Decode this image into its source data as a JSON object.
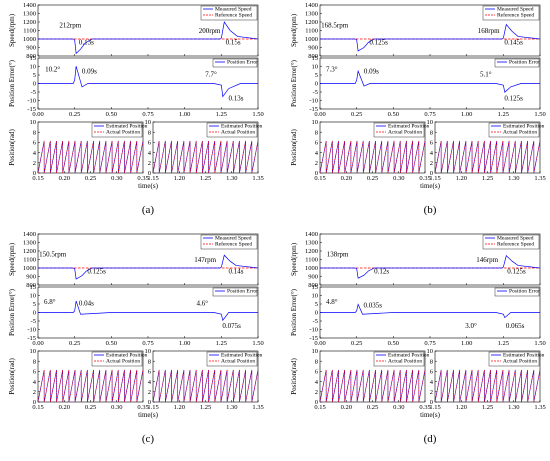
{
  "colors": {
    "measured": "#0000ff",
    "reference": "#ff0000",
    "error": "#0000ff",
    "estimated": "#0000ff",
    "actual": "#ff0000",
    "annotation": "#000000"
  },
  "chart_data": [
    {
      "panel": "(a)",
      "type": "line",
      "speed": {
        "ylabel": "Speed(rpm)",
        "ylim": [
          800,
          1400
        ],
        "yticks": [
          800,
          900,
          1000,
          1100,
          1200,
          1300,
          1400
        ],
        "xlim": [
          0.0,
          1.5
        ],
        "xticks": [
          "0.00",
          "0.25",
          "0.50",
          "0.75",
          "1.00",
          "1.25",
          "1.50"
        ],
        "legend": [
          "Measured Speed",
          "Reference Speed"
        ],
        "reference_speed": 1000,
        "series": [
          {
            "name": "Measured Speed",
            "x": [
              0.0,
              0.24,
              0.25,
              0.26,
              0.29,
              0.32,
              0.37,
              0.5,
              1.2,
              1.24,
              1.25,
              1.27,
              1.31,
              1.36,
              1.5
            ],
            "y": [
              1000,
              1000,
              988,
              830,
              880,
              950,
              1000,
              1000,
              1000,
              1000,
              1010,
              1200,
              1100,
              1030,
              1000
            ]
          }
        ],
        "annotations": [
          {
            "text": "212rpm",
            "x": 0.22,
            "y": 1135
          },
          {
            "text": "0.13s",
            "x": 0.33,
            "y": 935
          },
          {
            "text": "200rpm",
            "x": 1.17,
            "y": 1070
          },
          {
            "text": "0.15s",
            "x": 1.33,
            "y": 935
          }
        ]
      },
      "error": {
        "ylabel": "Position Error(°)",
        "ylim": [
          -15,
          15
        ],
        "yticks": [
          -15,
          -10,
          -5,
          0,
          5,
          10,
          15
        ],
        "xlim": [
          0.0,
          1.5
        ],
        "xticks": [
          "0.00",
          "0.25",
          "0.50",
          "0.75",
          "1.00",
          "1.25",
          "1.50"
        ],
        "legend": [
          "Position Error"
        ],
        "series": [
          {
            "name": "Position Error",
            "x": [
              0.0,
              0.24,
              0.25,
              0.26,
              0.3,
              0.34,
              0.5,
              1.2,
              1.25,
              1.26,
              1.3,
              1.38,
              1.5
            ],
            "y": [
              0,
              0,
              2,
              10.2,
              -2,
              0,
              0,
              0,
              -1,
              -7.7,
              -3,
              0,
              0
            ]
          }
        ],
        "annotations": [
          {
            "text": "10.2°",
            "x": 0.1,
            "y": 7
          },
          {
            "text": "0.09s",
            "x": 0.35,
            "y": 6
          },
          {
            "text": "7.7°",
            "x": 1.18,
            "y": 4
          },
          {
            "text": "0.13s",
            "x": 1.35,
            "y": -10
          }
        ]
      },
      "position_left": {
        "ylabel": "Position(rad)",
        "ylim": [
          0,
          10
        ],
        "yticks": [
          0,
          2,
          4,
          6,
          8,
          10
        ],
        "xlim": [
          0.15,
          0.35
        ],
        "xticks": [
          "0.15",
          "0.20",
          "0.25",
          "0.30",
          "0.35"
        ],
        "legend": [
          "Estimated Position",
          "Actual Position"
        ],
        "sawtooth": {
          "amplitude": 6.28,
          "count": 17
        }
      },
      "position_right": {
        "ylabel": "",
        "ylim": [
          0,
          10
        ],
        "yticks": [
          0,
          2,
          4,
          6,
          8,
          10
        ],
        "xlim": [
          1.15,
          1.35
        ],
        "xticks": [
          "1.15",
          "1.20",
          "1.25",
          "1.30",
          "1.35"
        ],
        "legend": [
          "Estimated Position",
          "Actual Position"
        ],
        "sawtooth": {
          "amplitude": 6.28,
          "count": 17
        }
      },
      "xlabel": "time(s)"
    },
    {
      "panel": "(b)",
      "type": "line",
      "speed": {
        "ylabel": "Speed(rpm)",
        "ylim": [
          800,
          1400
        ],
        "yticks": [
          800,
          900,
          1000,
          1100,
          1200,
          1300,
          1400
        ],
        "xlim": [
          0.0,
          1.5
        ],
        "xticks": [
          "0.00",
          "0.25",
          "0.50",
          "0.75",
          "1.00",
          "1.25",
          "1.50"
        ],
        "legend": [
          "Measured Speed",
          "Reference Speed"
        ],
        "reference_speed": 1000,
        "series": [
          {
            "name": "Measured Speed",
            "x": [
              0.0,
              0.24,
              0.25,
              0.26,
              0.3,
              0.33,
              0.37,
              0.5,
              1.2,
              1.24,
              1.25,
              1.27,
              1.31,
              1.35,
              1.5
            ],
            "y": [
              1000,
              1000,
              990,
              860,
              900,
              960,
              1000,
              1000,
              1000,
              1000,
              1010,
              1170,
              1090,
              1030,
              1000
            ]
          }
        ],
        "annotations": [
          {
            "text": "168.5rpm",
            "x": 0.1,
            "y": 1135
          },
          {
            "text": "0.125s",
            "x": 0.4,
            "y": 935
          },
          {
            "text": "168rpm",
            "x": 1.15,
            "y": 1070
          },
          {
            "text": "0.145s",
            "x": 1.32,
            "y": 935
          }
        ]
      },
      "error": {
        "ylabel": "Position Error(°)",
        "ylim": [
          -15,
          15
        ],
        "yticks": [
          -15,
          -10,
          -5,
          0,
          5,
          10,
          15
        ],
        "xlim": [
          0.0,
          1.5
        ],
        "xticks": [
          "0.00",
          "0.25",
          "0.50",
          "0.75",
          "1.00",
          "1.25",
          "1.50"
        ],
        "legend": [
          "Position Error"
        ],
        "series": [
          {
            "name": "Position Error",
            "x": [
              0.0,
              0.24,
              0.25,
              0.26,
              0.3,
              0.34,
              0.5,
              1.2,
              1.25,
              1.26,
              1.3,
              1.37,
              1.5
            ],
            "y": [
              0,
              0,
              2,
              7.3,
              -1.5,
              0,
              0,
              0,
              -1,
              -5.1,
              -2,
              0,
              0
            ]
          }
        ],
        "annotations": [
          {
            "text": "7.3°",
            "x": 0.08,
            "y": 7
          },
          {
            "text": "0.09s",
            "x": 0.35,
            "y": 6
          },
          {
            "text": "5.1°",
            "x": 1.13,
            "y": 4
          },
          {
            "text": "0.125s",
            "x": 1.32,
            "y": -10
          }
        ]
      },
      "position_left": {
        "ylabel": "Position(rad)",
        "ylim": [
          0,
          10
        ],
        "yticks": [
          0,
          2,
          4,
          6,
          8,
          10
        ],
        "xlim": [
          0.15,
          0.35
        ],
        "xticks": [
          "0.15",
          "0.20",
          "0.25",
          "0.30",
          "0.35"
        ],
        "legend": [
          "Estimated Position",
          "Actual Position"
        ],
        "sawtooth": {
          "amplitude": 6.28,
          "count": 17
        }
      },
      "position_right": {
        "ylabel": "",
        "ylim": [
          0,
          10
        ],
        "yticks": [
          0,
          2,
          4,
          6,
          8,
          10
        ],
        "xlim": [
          1.15,
          1.35
        ],
        "xticks": [
          "1.15",
          "1.20",
          "1.25",
          "1.30",
          "1.35"
        ],
        "legend": [
          "Estimated Position",
          "Actual Position"
        ],
        "sawtooth": {
          "amplitude": 6.28,
          "count": 17
        }
      },
      "xlabel": "time(s)"
    },
    {
      "panel": "(c)",
      "type": "line",
      "speed": {
        "ylabel": "Speed(rpm)",
        "ylim": [
          800,
          1400
        ],
        "yticks": [
          800,
          900,
          1000,
          1100,
          1200,
          1300,
          1400
        ],
        "xlim": [
          0.0,
          1.5
        ],
        "xticks": [
          "0.00",
          "0.25",
          "0.50",
          "0.75",
          "1.00",
          "1.25",
          "1.50"
        ],
        "legend": [
          "Measured Speed",
          "Reference Speed"
        ],
        "reference_speed": 1000,
        "series": [
          {
            "name": "Measured Speed",
            "x": [
              0.0,
              0.24,
              0.25,
              0.26,
              0.3,
              0.33,
              0.37,
              0.5,
              1.2,
              1.24,
              1.25,
              1.27,
              1.31,
              1.35,
              1.5
            ],
            "y": [
              1000,
              1000,
              992,
              870,
              910,
              965,
              1000,
              1000,
              1000,
              1000,
              1010,
              1150,
              1080,
              1030,
              1000
            ]
          }
        ],
        "annotations": [
          {
            "text": "150.5rpm",
            "x": 0.1,
            "y": 1135
          },
          {
            "text": "0.125s",
            "x": 0.4,
            "y": 935
          },
          {
            "text": "147rpm",
            "x": 1.14,
            "y": 1070
          },
          {
            "text": "0.14s",
            "x": 1.35,
            "y": 935
          }
        ]
      },
      "error": {
        "ylabel": "Position Error(°)",
        "ylim": [
          -15,
          15
        ],
        "yticks": [
          -15,
          -10,
          -5,
          0,
          5,
          10,
          15
        ],
        "xlim": [
          0.0,
          1.5
        ],
        "xticks": [
          "0.00",
          "0.25",
          "0.50",
          "0.75",
          "1.00",
          "1.25",
          "1.50"
        ],
        "legend": [
          "Position Error"
        ],
        "series": [
          {
            "name": "Position Error",
            "x": [
              0.0,
              0.24,
              0.25,
              0.26,
              0.29,
              0.5,
              1.2,
              1.25,
              1.26,
              1.3,
              1.5
            ],
            "y": [
              0,
              0,
              1,
              6.8,
              -1,
              0,
              0,
              -1,
              -4.6,
              0,
              0
            ]
          }
        ],
        "annotations": [
          {
            "text": "6.8°",
            "x": 0.08,
            "y": 5
          },
          {
            "text": "0.04s",
            "x": 0.33,
            "y": 4
          },
          {
            "text": "4.6°",
            "x": 1.12,
            "y": 4
          },
          {
            "text": "0.075s",
            "x": 1.32,
            "y": -9
          }
        ]
      },
      "position_left": {
        "ylabel": "Position(rad)",
        "ylim": [
          0,
          10
        ],
        "yticks": [
          0,
          2,
          4,
          6,
          8,
          10
        ],
        "xlim": [
          0.15,
          0.35
        ],
        "xticks": [
          "0.15",
          "0.20",
          "0.25",
          "0.30",
          "0.35"
        ],
        "legend": [
          "Estimated Position",
          "Actual Position"
        ],
        "sawtooth": {
          "amplitude": 6.28,
          "count": 17
        }
      },
      "position_right": {
        "ylabel": "",
        "ylim": [
          0,
          10
        ],
        "yticks": [
          0,
          2,
          4,
          6,
          8,
          10
        ],
        "xlim": [
          1.15,
          1.35
        ],
        "xticks": [
          "1.15",
          "1.20",
          "1.25",
          "1.30",
          "1.35"
        ],
        "legend": [
          "Estimated Position",
          "Actual Position"
        ],
        "sawtooth": {
          "amplitude": 6.28,
          "count": 17
        }
      },
      "xlabel": "time(s)"
    },
    {
      "panel": "(d)",
      "type": "line",
      "speed": {
        "ylabel": "Speed(rpm)",
        "ylim": [
          800,
          1400
        ],
        "yticks": [
          800,
          900,
          1000,
          1100,
          1200,
          1300,
          1400
        ],
        "xlim": [
          0.0,
          1.5
        ],
        "xticks": [
          "0.00",
          "0.25",
          "0.50",
          "0.75",
          "1.00",
          "1.25",
          "1.50"
        ],
        "legend": [
          "Measured Speed",
          "Reference Speed"
        ],
        "reference_speed": 1000,
        "series": [
          {
            "name": "Measured Speed",
            "x": [
              0.0,
              0.24,
              0.25,
              0.26,
              0.3,
              0.33,
              0.37,
              0.5,
              1.2,
              1.24,
              1.25,
              1.27,
              1.31,
              1.35,
              1.5
            ],
            "y": [
              1000,
              1000,
              993,
              880,
              915,
              965,
              1000,
              1000,
              1000,
              1000,
              1010,
              1145,
              1080,
              1030,
              1000
            ]
          }
        ],
        "annotations": [
          {
            "text": "138rpm",
            "x": 0.12,
            "y": 1135
          },
          {
            "text": "0.12s",
            "x": 0.42,
            "y": 935
          },
          {
            "text": "146rpm",
            "x": 1.14,
            "y": 1070
          },
          {
            "text": "0.125s",
            "x": 1.34,
            "y": 935
          }
        ]
      },
      "error": {
        "ylabel": "Position Error(°)",
        "ylim": [
          -15,
          15
        ],
        "yticks": [
          -15,
          -10,
          -5,
          0,
          5,
          10,
          15
        ],
        "xlim": [
          0.0,
          1.5
        ],
        "xticks": [
          "0.00",
          "0.25",
          "0.50",
          "0.75",
          "1.00",
          "1.25",
          "1.50"
        ],
        "legend": [
          "Position Error"
        ],
        "series": [
          {
            "name": "Position Error",
            "x": [
              0.0,
              0.24,
              0.25,
              0.26,
              0.29,
              0.5,
              1.2,
              1.25,
              1.26,
              1.3,
              1.5
            ],
            "y": [
              0,
              0,
              1,
              4.8,
              -1,
              0,
              0,
              -1,
              -3.0,
              0,
              0
            ]
          }
        ],
        "annotations": [
          {
            "text": "4.8°",
            "x": 0.08,
            "y": 5
          },
          {
            "text": "0.035s",
            "x": 0.36,
            "y": 3
          },
          {
            "text": "3.0°",
            "x": 1.03,
            "y": -9
          },
          {
            "text": "0.065s",
            "x": 1.33,
            "y": -9
          }
        ]
      },
      "position_left": {
        "ylabel": "Position(rad)",
        "ylim": [
          0,
          10
        ],
        "yticks": [
          0,
          2,
          4,
          6,
          8,
          10
        ],
        "xlim": [
          0.15,
          0.35
        ],
        "xticks": [
          "0.15",
          "0.20",
          "0.25",
          "0.30",
          "0.35"
        ],
        "legend": [
          "Estimated Position",
          "Actual Position"
        ],
        "sawtooth": {
          "amplitude": 6.28,
          "count": 17
        }
      },
      "position_right": {
        "ylabel": "",
        "ylim": [
          0,
          10
        ],
        "yticks": [
          0,
          2,
          4,
          6,
          8,
          10
        ],
        "xlim": [
          1.15,
          1.35
        ],
        "xticks": [
          "1.15",
          "1.20",
          "1.25",
          "1.30",
          "1.35"
        ],
        "legend": [
          "Estimated Position",
          "Actual Position"
        ],
        "sawtooth": {
          "amplitude": 6.28,
          "count": 17
        }
      },
      "xlabel": "time(s)"
    }
  ]
}
